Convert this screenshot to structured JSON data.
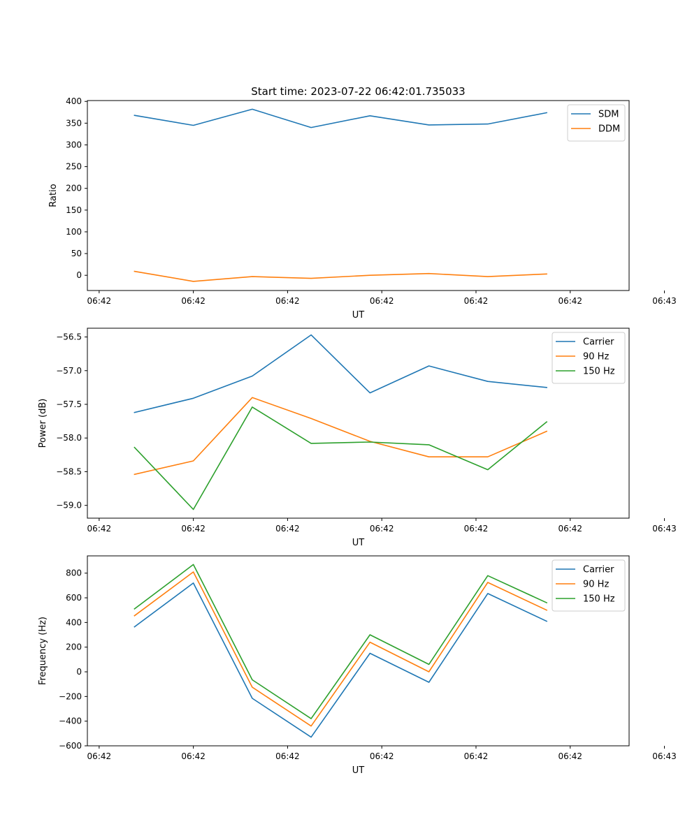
{
  "figure_title": "Start time: 2023-07-22 06:42:01.735033",
  "colors": {
    "c0": "#1f77b4",
    "c1": "#ff7f0e",
    "c2": "#2ca02c"
  },
  "chart_data": [
    {
      "type": "line",
      "title": "Start time: 2023-07-22 06:42:01.735033",
      "xlabel": "UT",
      "ylabel": "Ratio",
      "x": [
        1,
        2,
        3,
        4,
        5,
        6,
        7,
        8
      ],
      "xlim": [
        0.2,
        9.4
      ],
      "xticks": [
        0.4,
        2.0,
        3.6,
        5.2,
        6.8,
        8.4,
        10.0
      ],
      "xtick_labels": [
        "06:42",
        "06:42",
        "06:42",
        "06:42",
        "06:42",
        "06:42",
        "06:43"
      ],
      "ylim": [
        -35,
        402
      ],
      "yticks": [
        0,
        50,
        100,
        150,
        200,
        250,
        300,
        350,
        400
      ],
      "ytick_labels": [
        "0",
        "50",
        "100",
        "150",
        "200",
        "250",
        "300",
        "350",
        "400"
      ],
      "legend_position": "upper-right",
      "series": [
        {
          "name": "SDM",
          "color": "#1f77b4",
          "values": [
            368,
            345,
            382,
            340,
            367,
            346,
            348,
            374
          ]
        },
        {
          "name": "DDM",
          "color": "#ff7f0e",
          "values": [
            9,
            -14,
            -3,
            -7,
            0,
            4,
            -3,
            3
          ]
        }
      ]
    },
    {
      "type": "line",
      "title": "",
      "xlabel": "UT",
      "ylabel": "Power (dB)",
      "x": [
        1,
        2,
        3,
        4,
        5,
        6,
        7,
        8
      ],
      "xlim": [
        0.2,
        9.4
      ],
      "xticks": [
        0.4,
        2.0,
        3.6,
        5.2,
        6.8,
        8.4,
        10.0
      ],
      "xtick_labels": [
        "06:42",
        "06:42",
        "06:42",
        "06:42",
        "06:42",
        "06:42",
        "06:43"
      ],
      "ylim": [
        -59.19,
        -56.37
      ],
      "yticks": [
        -59.0,
        -58.5,
        -58.0,
        -57.5,
        -57.0,
        -56.5
      ],
      "ytick_labels": [
        "−59.0",
        "−58.5",
        "−58.0",
        "−57.5",
        "−57.0",
        "−56.5"
      ],
      "legend_position": "upper-right",
      "series": [
        {
          "name": "Carrier",
          "color": "#1f77b4",
          "values": [
            -57.62,
            -57.41,
            -57.08,
            -56.47,
            -57.33,
            -56.93,
            -57.16,
            -57.25
          ]
        },
        {
          "name": "90 Hz",
          "color": "#ff7f0e",
          "values": [
            -58.54,
            -58.34,
            -57.4,
            -57.71,
            -58.05,
            -58.28,
            -58.28,
            -57.9
          ]
        },
        {
          "name": "150 Hz",
          "color": "#2ca02c",
          "values": [
            -58.14,
            -59.06,
            -57.54,
            -58.08,
            -58.06,
            -58.1,
            -58.47,
            -57.76
          ]
        }
      ]
    },
    {
      "type": "line",
      "title": "",
      "xlabel": "UT",
      "ylabel": "Frequency (Hz)",
      "x": [
        1,
        2,
        3,
        4,
        5,
        6,
        7,
        8
      ],
      "xlim": [
        0.2,
        9.4
      ],
      "xticks": [
        0.4,
        2.0,
        3.6,
        5.2,
        6.8,
        8.4,
        10.0
      ],
      "xtick_labels": [
        "06:42",
        "06:42",
        "06:42",
        "06:42",
        "06:42",
        "06:42",
        "06:43"
      ],
      "ylim": [
        -600,
        940
      ],
      "yticks": [
        -600,
        -400,
        -200,
        0,
        200,
        400,
        600,
        800
      ],
      "ytick_labels": [
        "−600",
        "−400",
        "−200",
        "0",
        "200",
        "400",
        "600",
        "800"
      ],
      "legend_position": "upper-right",
      "series": [
        {
          "name": "Carrier",
          "color": "#1f77b4",
          "values": [
            365,
            720,
            -215,
            -530,
            150,
            -85,
            635,
            410
          ]
        },
        {
          "name": "90 Hz",
          "color": "#ff7f0e",
          "values": [
            455,
            810,
            -125,
            -440,
            240,
            0,
            725,
            500
          ]
        },
        {
          "name": "150 Hz",
          "color": "#2ca02c",
          "values": [
            510,
            870,
            -65,
            -380,
            300,
            60,
            780,
            560
          ]
        }
      ]
    }
  ]
}
